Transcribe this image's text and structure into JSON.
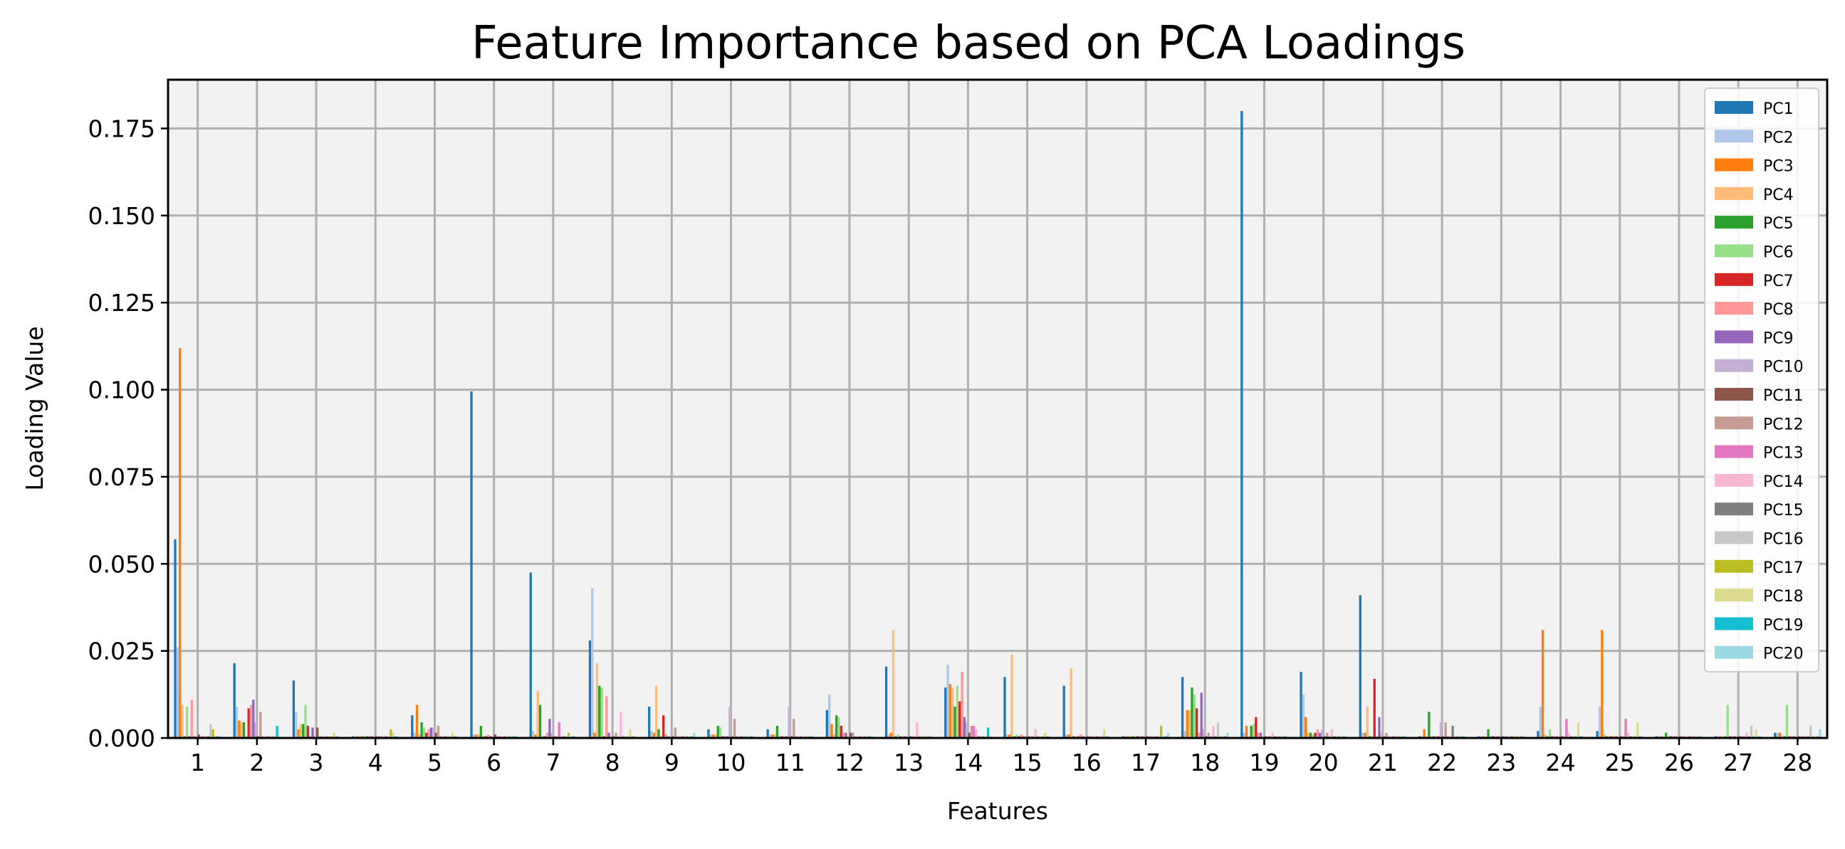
{
  "chart_data": {
    "type": "bar",
    "title": "Feature Importance based on PCA Loadings",
    "xlabel": "Features",
    "ylabel": "Loading Value",
    "ylim": [
      0,
      0.189
    ],
    "yticks": [
      "0.000",
      "0.025",
      "0.050",
      "0.075",
      "0.100",
      "0.125",
      "0.150",
      "0.175"
    ],
    "grid": true,
    "legend_position": "top-right",
    "categories": [
      "1",
      "2",
      "3",
      "4",
      "5",
      "6",
      "7",
      "8",
      "9",
      "10",
      "11",
      "12",
      "13",
      "14",
      "15",
      "16",
      "17",
      "18",
      "19",
      "20",
      "21",
      "22",
      "23",
      "24",
      "25",
      "26",
      "27",
      "28"
    ],
    "series": [
      {
        "name": "PC1",
        "color": "#1f77b4",
        "values": [
          0.057,
          0.0215,
          0.0165,
          0.0005,
          0.0065,
          0.0995,
          0.0475,
          0.028,
          0.009,
          0.0025,
          0.0025,
          0.008,
          0.0205,
          0.0145,
          0.0175,
          0.015,
          0.0005,
          0.0175,
          0.18,
          0.019,
          0.041,
          0.0005,
          0.0005,
          0.002,
          0.002,
          0.0005,
          0.0005,
          0.0015
        ]
      },
      {
        "name": "PC2",
        "color": "#aec7e8",
        "values": [
          0.026,
          0.009,
          0.0075,
          0.0005,
          0.0015,
          0.001,
          0.002,
          0.043,
          0.002,
          0.001,
          0.001,
          0.0125,
          0.001,
          0.021,
          0.001,
          0.001,
          0.0005,
          0.002,
          0.0015,
          0.0125,
          0.0015,
          0.0005,
          0.0005,
          0.009,
          0.009,
          0.0005,
          0.0005,
          0.0015
        ]
      },
      {
        "name": "PC3",
        "color": "#ff7f0e",
        "values": [
          0.112,
          0.005,
          0.0025,
          0.0005,
          0.0095,
          0.001,
          0.001,
          0.0015,
          0.0015,
          0.001,
          0.001,
          0.004,
          0.0015,
          0.0155,
          0.001,
          0.001,
          0.0005,
          0.008,
          0.0035,
          0.006,
          0.0015,
          0.0025,
          0.0005,
          0.031,
          0.031,
          0.0005,
          0.0005,
          0.0015
        ]
      },
      {
        "name": "PC4",
        "color": "#ffbb78",
        "values": [
          0.0095,
          0.0045,
          0.004,
          0.0005,
          0.001,
          0.001,
          0.0135,
          0.0215,
          0.015,
          0.001,
          0.001,
          0.001,
          0.031,
          0.0145,
          0.024,
          0.02,
          0.0005,
          0.008,
          0.0005,
          0.0015,
          0.009,
          0.0005,
          0.0005,
          0.001,
          0.001,
          0.0005,
          0.0005,
          0.0005
        ]
      },
      {
        "name": "PC5",
        "color": "#2ca02c",
        "values": [
          0.0005,
          0.0045,
          0.004,
          0.0005,
          0.0045,
          0.0035,
          0.0095,
          0.015,
          0.0025,
          0.0035,
          0.0035,
          0.0065,
          0.0005,
          0.009,
          0.0005,
          0.0005,
          0.0005,
          0.0145,
          0.0035,
          0.0015,
          0.0005,
          0.0075,
          0.0025,
          0.0005,
          0.0005,
          0.0015,
          0.0005,
          0.0005
        ]
      },
      {
        "name": "PC6",
        "color": "#98df8a",
        "values": [
          0.009,
          0.0005,
          0.0095,
          0.0005,
          0.003,
          0.0005,
          0.0005,
          0.0145,
          0.0005,
          0.003,
          0.0005,
          0.006,
          0.001,
          0.015,
          0.001,
          0.0005,
          0.0005,
          0.0125,
          0.004,
          0.001,
          0.0005,
          0.0005,
          0.0005,
          0.0025,
          0.0005,
          0.0005,
          0.0095,
          0.0095
        ]
      },
      {
        "name": "PC7",
        "color": "#d62728",
        "values": [
          0.0005,
          0.0085,
          0.0035,
          0.0005,
          0.0015,
          0.0005,
          0.0005,
          0.0005,
          0.0065,
          0.0005,
          0.0005,
          0.0035,
          0.0005,
          0.0105,
          0.0005,
          0.0005,
          0.0005,
          0.0085,
          0.006,
          0.0015,
          0.017,
          0.0005,
          0.0005,
          0.0005,
          0.0005,
          0.0005,
          0.0005,
          0.0005
        ]
      },
      {
        "name": "PC8",
        "color": "#ff9896",
        "values": [
          0.011,
          0.0095,
          0.0005,
          0.0005,
          0.0025,
          0.001,
          0.0015,
          0.012,
          0.001,
          0.0005,
          0.0005,
          0.0015,
          0.0005,
          0.019,
          0.001,
          0.001,
          0.0005,
          0.0015,
          0.0015,
          0.0025,
          0.0005,
          0.0005,
          0.0005,
          0.0005,
          0.0005,
          0.0005,
          0.0005,
          0.0005
        ]
      },
      {
        "name": "PC9",
        "color": "#9467bd",
        "values": [
          0.0005,
          0.011,
          0.003,
          0.0005,
          0.003,
          0.0005,
          0.0055,
          0.0015,
          0.0005,
          0.0005,
          0.0005,
          0.0015,
          0.0005,
          0.006,
          0.0005,
          0.0005,
          0.0005,
          0.013,
          0.0015,
          0.0015,
          0.006,
          0.0005,
          0.0005,
          0.0005,
          0.0005,
          0.0005,
          0.0005,
          0.0005
        ]
      },
      {
        "name": "PC10",
        "color": "#c5b0d5",
        "values": [
          0.0005,
          0.0045,
          0.0005,
          0.0005,
          0.003,
          0.0005,
          0.0015,
          0.0005,
          0.0005,
          0.009,
          0.009,
          0.0005,
          0.0005,
          0.0045,
          0.0005,
          0.0005,
          0.0005,
          0.0025,
          0.0005,
          0.0025,
          0.0015,
          0.0045,
          0.0005,
          0.0005,
          0.0005,
          0.0005,
          0.0005,
          0.0005
        ]
      },
      {
        "name": "PC11",
        "color": "#8c564b",
        "values": [
          0.001,
          0.0005,
          0.003,
          0.0005,
          0.0015,
          0.001,
          0.0005,
          0.0005,
          0.0005,
          0.0005,
          0.0005,
          0.0015,
          0.0005,
          0.0015,
          0.0005,
          0.0005,
          0.0005,
          0.0005,
          0.0005,
          0.0005,
          0.0005,
          0.0005,
          0.0005,
          0.0005,
          0.0005,
          0.0005,
          0.0005,
          0.0005
        ]
      },
      {
        "name": "PC12",
        "color": "#c49c94",
        "values": [
          0.0005,
          0.0075,
          0.0005,
          0.0005,
          0.0035,
          0.0005,
          0.0005,
          0.0015,
          0.003,
          0.0055,
          0.0055,
          0.0015,
          0.0005,
          0.0035,
          0.0005,
          0.0005,
          0.0005,
          0.0015,
          0.0005,
          0.0015,
          0.0015,
          0.0045,
          0.0005,
          0.0005,
          0.0005,
          0.0005,
          0.0005,
          0.0005
        ]
      },
      {
        "name": "PC13",
        "color": "#e377c2",
        "values": [
          0.0005,
          0.0005,
          0.0005,
          0.0005,
          0.0005,
          0.0005,
          0.0045,
          0.0005,
          0.0005,
          0.0005,
          0.0005,
          0.0005,
          0.0005,
          0.0035,
          0.0005,
          0.0005,
          0.0005,
          0.0005,
          0.0005,
          0.0005,
          0.0005,
          0.0005,
          0.0005,
          0.0055,
          0.0055,
          0.0005,
          0.0005,
          0.0005
        ]
      },
      {
        "name": "PC14",
        "color": "#f7b6d2",
        "values": [
          0.0005,
          0.0005,
          0.0005,
          0.0005,
          0.0005,
          0.0005,
          0.0005,
          0.0075,
          0.0005,
          0.0005,
          0.0005,
          0.0005,
          0.0045,
          0.0025,
          0.0025,
          0.0005,
          0.0005,
          0.0035,
          0.0015,
          0.0025,
          0.0005,
          0.0005,
          0.0005,
          0.0015,
          0.0015,
          0.0005,
          0.0015,
          0.0005
        ]
      },
      {
        "name": "PC15",
        "color": "#7f7f7f",
        "values": [
          0.0005,
          0.0005,
          0.0005,
          0.0005,
          0.0005,
          0.0005,
          0.0005,
          0.0005,
          0.0005,
          0.0005,
          0.0005,
          0.0005,
          0.0005,
          0.0005,
          0.0005,
          0.0005,
          0.0005,
          0.0005,
          0.0005,
          0.0005,
          0.0005,
          0.0035,
          0.0005,
          0.0005,
          0.0005,
          0.0005,
          0.0005,
          0.0005
        ]
      },
      {
        "name": "PC16",
        "color": "#c7c7c7",
        "values": [
          0.004,
          0.0005,
          0.0005,
          0.0005,
          0.0005,
          0.0005,
          0.0005,
          0.0005,
          0.0005,
          0.0005,
          0.0005,
          0.0005,
          0.0005,
          0.0005,
          0.0005,
          0.0005,
          0.0005,
          0.0045,
          0.0005,
          0.0005,
          0.0005,
          0.0005,
          0.0005,
          0.0005,
          0.0005,
          0.0005,
          0.0035,
          0.0035
        ]
      },
      {
        "name": "PC17",
        "color": "#bcbd22",
        "values": [
          0.0025,
          0.0005,
          0.0005,
          0.0025,
          0.0005,
          0.0005,
          0.0015,
          0.0005,
          0.0005,
          0.0005,
          0.0005,
          0.0005,
          0.0005,
          0.0005,
          0.0005,
          0.0005,
          0.0035,
          0.0005,
          0.0005,
          0.0005,
          0.0005,
          0.0005,
          0.0005,
          0.0005,
          0.0005,
          0.0005,
          0.0005,
          0.0005
        ]
      },
      {
        "name": "PC18",
        "color": "#dbdb8d",
        "values": [
          0.0005,
          0.0005,
          0.0015,
          0.0015,
          0.0015,
          0.0005,
          0.0005,
          0.0025,
          0.0005,
          0.0005,
          0.0005,
          0.0005,
          0.0005,
          0.0005,
          0.0015,
          0.0025,
          0.0005,
          0.0005,
          0.0005,
          0.0005,
          0.0005,
          0.0005,
          0.0005,
          0.0045,
          0.0045,
          0.0005,
          0.0025,
          0.0005
        ]
      },
      {
        "name": "PC19",
        "color": "#17becf",
        "values": [
          0.0005,
          0.0035,
          0.0005,
          0.0005,
          0.0005,
          0.0005,
          0.0005,
          0.0005,
          0.0005,
          0.0005,
          0.0005,
          0.0005,
          0.0005,
          0.003,
          0.0005,
          0.0005,
          0.0005,
          0.0005,
          0.0005,
          0.0005,
          0.0005,
          0.0005,
          0.0005,
          0.0005,
          0.0005,
          0.0005,
          0.0005,
          0.0005
        ]
      },
      {
        "name": "PC20",
        "color": "#9edae5",
        "values": [
          0.0005,
          0.0005,
          0.0005,
          0.0005,
          0.0005,
          0.0005,
          0.0005,
          0.0005,
          0.0015,
          0.0005,
          0.0005,
          0.0005,
          0.0005,
          0.0005,
          0.0005,
          0.0005,
          0.0015,
          0.0015,
          0.0005,
          0.0005,
          0.0005,
          0.0005,
          0.0005,
          0.0005,
          0.0005,
          0.0005,
          0.0005,
          0.0025
        ]
      }
    ]
  }
}
